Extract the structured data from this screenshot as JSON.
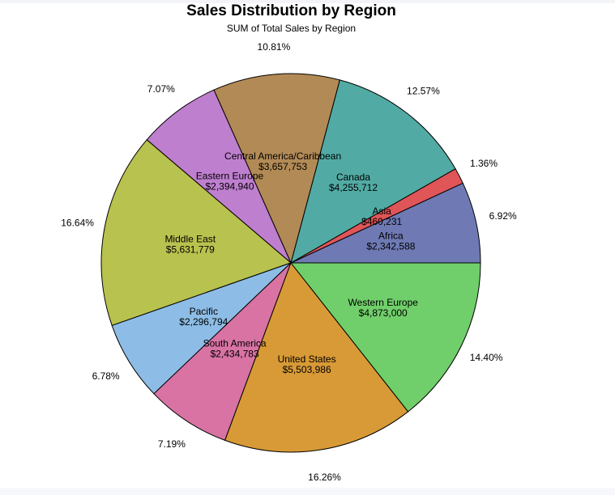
{
  "chart_data": {
    "type": "pie",
    "title": "Sales Distribution by Region",
    "subtitle": "SUM of Total Sales by Region",
    "slices": [
      {
        "label": "Africa",
        "value_label": "$2,342,588",
        "value": 2342588,
        "percent_label": "6.92%",
        "color": "#6f7ab4"
      },
      {
        "label": "Asia",
        "value_label": "$460,231",
        "value": 460231,
        "percent_label": "1.36%",
        "color": "#e05558"
      },
      {
        "label": "Canada",
        "value_label": "$4,255,712",
        "value": 4255712,
        "percent_label": "12.57%",
        "color": "#51aba4"
      },
      {
        "label": "Central America/Caribbean",
        "value_label": "$3,657,753",
        "value": 3657753,
        "percent_label": "10.81%",
        "color": "#b28a56"
      },
      {
        "label": "Eastern Europe",
        "value_label": "$2,394,940",
        "value": 2394940,
        "percent_label": "7.07%",
        "color": "#bf7fcf"
      },
      {
        "label": "Middle East",
        "value_label": "$5,631,779",
        "value": 5631779,
        "percent_label": "16.64%",
        "color": "#b8c24e"
      },
      {
        "label": "Pacific",
        "value_label": "$2,296,794",
        "value": 2296794,
        "percent_label": "6.78%",
        "color": "#8dbde6"
      },
      {
        "label": "South America",
        "value_label": "$2,434,783",
        "value": 2434783,
        "percent_label": "7.19%",
        "color": "#d873a3"
      },
      {
        "label": "United States",
        "value_label": "$5,503,986",
        "value": 5503986,
        "percent_label": "16.26%",
        "color": "#d89a36"
      },
      {
        "label": "Western Europe",
        "value_label": "$4,873,000",
        "value": 4873000,
        "percent_label": "14.40%",
        "color": "#70cf6a"
      }
    ]
  }
}
